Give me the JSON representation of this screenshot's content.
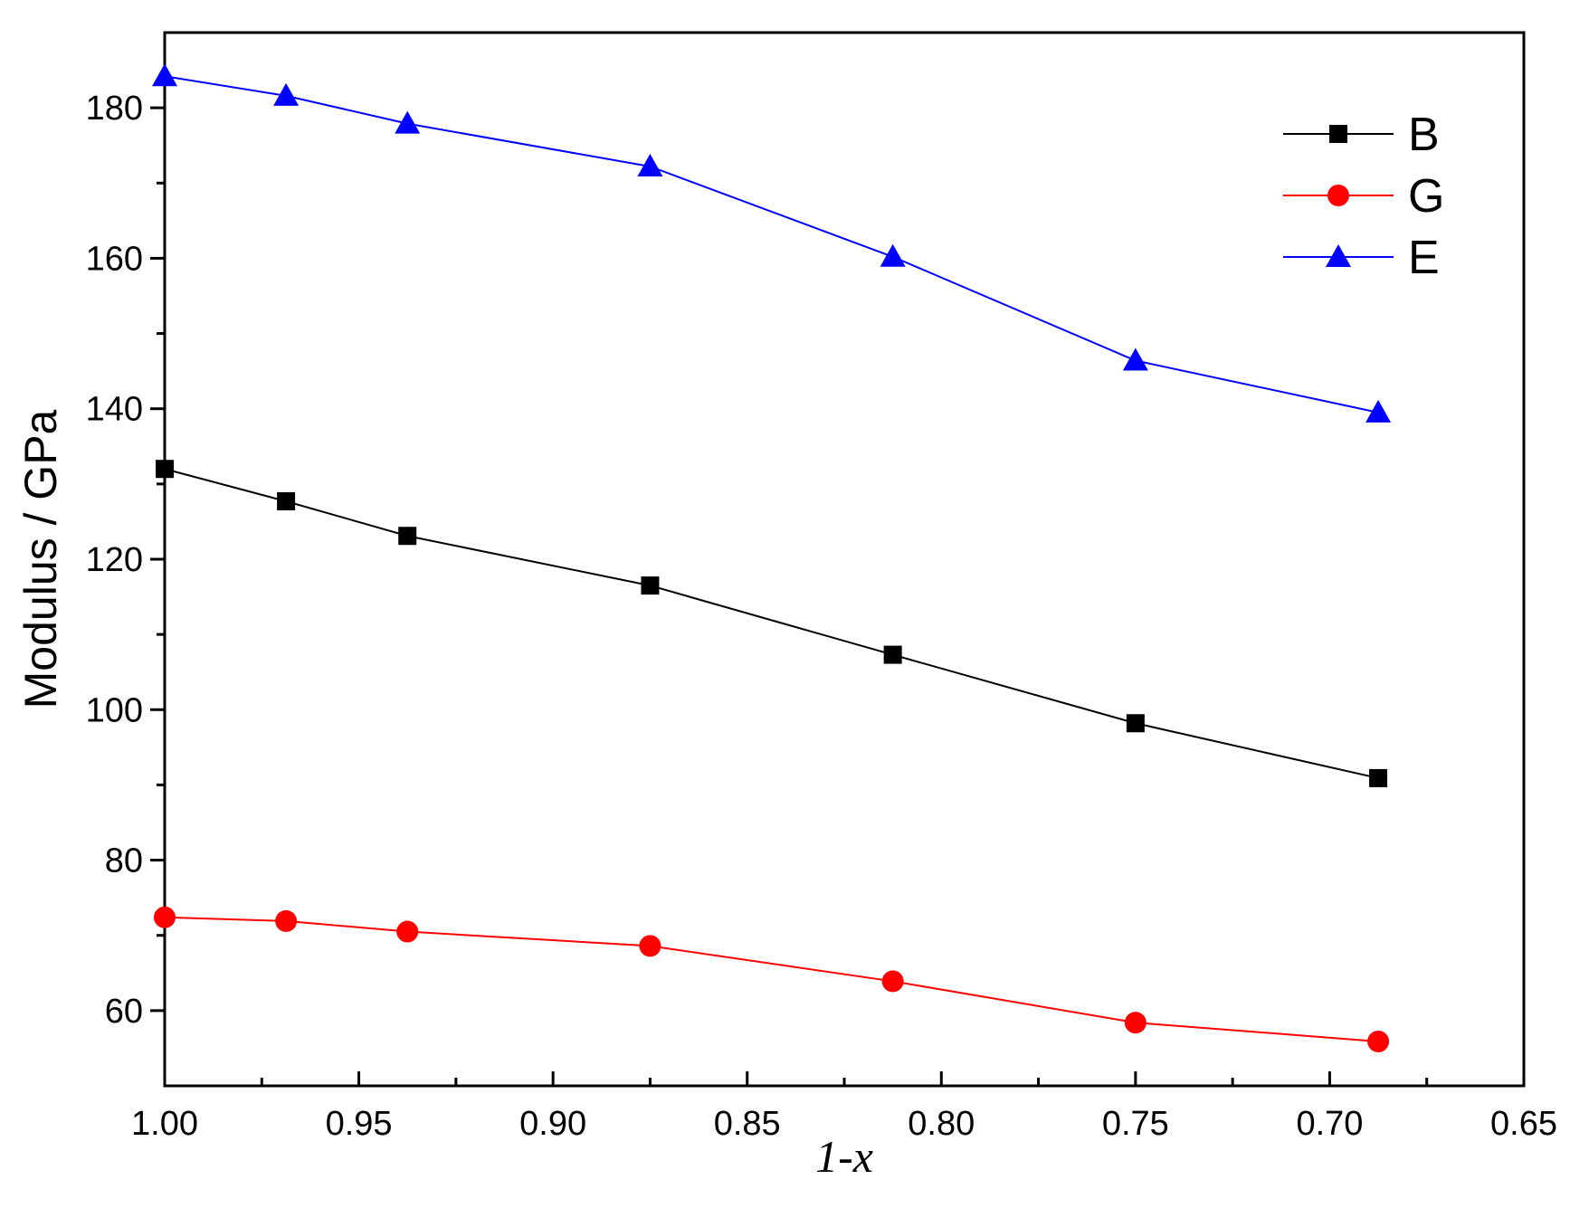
{
  "chart_data": {
    "type": "line",
    "title": "",
    "xlabel": "1-x",
    "ylabel": "Modulus / GPa",
    "xlim": [
      1.0,
      0.65
    ],
    "ylim": [
      50,
      190
    ],
    "x_reversed": true,
    "xticks": [
      "1.00",
      "0.95",
      "0.90",
      "0.85",
      "0.80",
      "0.75",
      "0.70",
      "0.65"
    ],
    "xtick_values": [
      1.0,
      0.95,
      0.9,
      0.85,
      0.8,
      0.75,
      0.7,
      0.65
    ],
    "yticks": [
      "60",
      "80",
      "100",
      "120",
      "140",
      "160",
      "180"
    ],
    "ytick_values": [
      60,
      80,
      100,
      120,
      140,
      160,
      180
    ],
    "grid": false,
    "legend_position": "top-right",
    "x": [
      1.0,
      0.96875,
      0.9375,
      0.875,
      0.8125,
      0.75,
      0.6875
    ],
    "series": [
      {
        "name": "B",
        "color": "#000000",
        "marker": "square",
        "values": [
          132.0,
          127.7,
          123.1,
          116.5,
          107.3,
          98.2,
          90.9
        ]
      },
      {
        "name": "G",
        "color": "#ff0000",
        "marker": "circle",
        "values": [
          72.4,
          71.9,
          70.5,
          68.6,
          63.9,
          58.4,
          55.9
        ]
      },
      {
        "name": "E",
        "color": "#0000ff",
        "marker": "triangle",
        "values": [
          184.2,
          181.6,
          177.9,
          172.2,
          160.2,
          146.4,
          139.5
        ]
      }
    ]
  }
}
